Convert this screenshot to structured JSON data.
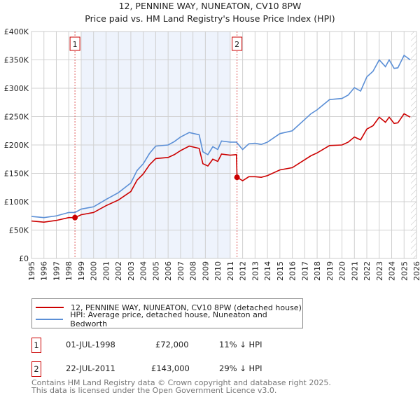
{
  "chart_data": {
    "type": "line",
    "title": "12, PENNINE WAY, NUNEATON, CV10 8PW",
    "subtitle": "Price paid vs. HM Land Registry's House Price Index (HPI)",
    "xlim": [
      1995,
      2026
    ],
    "ylim": [
      0,
      400000
    ],
    "grid": true,
    "x_ticks": [
      "1995",
      "1996",
      "1997",
      "1998",
      "1999",
      "2000",
      "2001",
      "2002",
      "2003",
      "2004",
      "2005",
      "2006",
      "2007",
      "2008",
      "2009",
      "2010",
      "2011",
      "2012",
      "2013",
      "2014",
      "2015",
      "2016",
      "2017",
      "2018",
      "2019",
      "2020",
      "2021",
      "2022",
      "2023",
      "2024",
      "2025",
      "2026"
    ],
    "y_ticks": [
      {
        "v": 0,
        "label": "£0"
      },
      {
        "v": 50000,
        "label": "£50K"
      },
      {
        "v": 100000,
        "label": "£100K"
      },
      {
        "v": 150000,
        "label": "£150K"
      },
      {
        "v": 200000,
        "label": "£200K"
      },
      {
        "v": 250000,
        "label": "£250K"
      },
      {
        "v": 300000,
        "label": "£300K"
      },
      {
        "v": 350000,
        "label": "£350K"
      },
      {
        "v": 400000,
        "label": "£400K"
      }
    ],
    "shaded_period": [
      1999,
      2011
    ],
    "forecast_hatch_from": 2025.55,
    "series": [
      {
        "name": "12, PENNINE WAY, NUNEATON, CV10 8PW (detached house)",
        "color": "#cc0000",
        "points": [
          [
            1995,
            66000
          ],
          [
            1996,
            64000
          ],
          [
            1997,
            67000
          ],
          [
            1998,
            72000
          ],
          [
            1998.5,
            72000
          ],
          [
            1999,
            77000
          ],
          [
            2000,
            81000
          ],
          [
            2001,
            93000
          ],
          [
            2002,
            103000
          ],
          [
            2003,
            118000
          ],
          [
            2003.5,
            138000
          ],
          [
            2004,
            149000
          ],
          [
            2004.5,
            165000
          ],
          [
            2005,
            176000
          ],
          [
            2006,
            178000
          ],
          [
            2006.5,
            183000
          ],
          [
            2007,
            190000
          ],
          [
            2007.7,
            198000
          ],
          [
            2008.5,
            194000
          ],
          [
            2008.8,
            167000
          ],
          [
            2009.2,
            163000
          ],
          [
            2009.6,
            175000
          ],
          [
            2010,
            171000
          ],
          [
            2010.3,
            184000
          ],
          [
            2011,
            182000
          ],
          [
            2011.5,
            183000
          ],
          [
            2011.55,
            143000
          ],
          [
            2012,
            137000
          ],
          [
            2012.5,
            144000
          ],
          [
            2013,
            144000
          ],
          [
            2013.5,
            143000
          ],
          [
            2014,
            146000
          ],
          [
            2015,
            156000
          ],
          [
            2016,
            160000
          ],
          [
            2017,
            174000
          ],
          [
            2017.5,
            181000
          ],
          [
            2018,
            186000
          ],
          [
            2019,
            199000
          ],
          [
            2020,
            200000
          ],
          [
            2020.5,
            205000
          ],
          [
            2021,
            214000
          ],
          [
            2021.5,
            209000
          ],
          [
            2022,
            228000
          ],
          [
            2022.5,
            234000
          ],
          [
            2023,
            249000
          ],
          [
            2023.5,
            240000
          ],
          [
            2023.8,
            249000
          ],
          [
            2024.2,
            238000
          ],
          [
            2024.5,
            239000
          ],
          [
            2025,
            255000
          ],
          [
            2025.5,
            249000
          ]
        ]
      },
      {
        "name": "HPI: Average price, detached house, Nuneaton and Bedworth",
        "color": "#5b8fd6",
        "points": [
          [
            1995,
            74000
          ],
          [
            1996,
            72000
          ],
          [
            1997,
            75000
          ],
          [
            1998,
            81000
          ],
          [
            1998.5,
            81000
          ],
          [
            1999,
            87000
          ],
          [
            2000,
            91000
          ],
          [
            2001,
            104000
          ],
          [
            2002,
            116000
          ],
          [
            2003,
            133000
          ],
          [
            2003.5,
            155000
          ],
          [
            2004,
            167000
          ],
          [
            2004.5,
            185000
          ],
          [
            2005,
            198000
          ],
          [
            2006,
            200000
          ],
          [
            2006.5,
            206000
          ],
          [
            2007,
            214000
          ],
          [
            2007.7,
            222000
          ],
          [
            2008.5,
            218000
          ],
          [
            2008.8,
            188000
          ],
          [
            2009.2,
            183000
          ],
          [
            2009.6,
            197000
          ],
          [
            2010,
            192000
          ],
          [
            2010.3,
            207000
          ],
          [
            2011,
            205000
          ],
          [
            2011.5,
            205000
          ],
          [
            2012,
            192000
          ],
          [
            2012.5,
            202000
          ],
          [
            2013,
            203000
          ],
          [
            2013.5,
            201000
          ],
          [
            2014,
            205000
          ],
          [
            2015,
            220000
          ],
          [
            2016,
            225000
          ],
          [
            2017,
            245000
          ],
          [
            2017.5,
            255000
          ],
          [
            2018,
            262000
          ],
          [
            2019,
            280000
          ],
          [
            2020,
            282000
          ],
          [
            2020.5,
            288000
          ],
          [
            2021,
            301000
          ],
          [
            2021.5,
            295000
          ],
          [
            2022,
            320000
          ],
          [
            2022.5,
            330000
          ],
          [
            2023,
            350000
          ],
          [
            2023.5,
            338000
          ],
          [
            2023.8,
            350000
          ],
          [
            2024.2,
            335000
          ],
          [
            2024.5,
            336000
          ],
          [
            2025,
            358000
          ],
          [
            2025.5,
            350000
          ]
        ]
      }
    ],
    "sales": [
      {
        "label": "1",
        "x": 1998.5,
        "value": 72000,
        "date": "01-JUL-1998",
        "price": "£72,000",
        "hpi": "11% ↓ HPI"
      },
      {
        "label": "2",
        "x": 2011.55,
        "value": 143000,
        "date": "22-JUL-2011",
        "price": "£143,000",
        "hpi": "29% ↓ HPI"
      }
    ]
  },
  "footer": {
    "line1": "Contains HM Land Registry data © Crown copyright and database right 2025.",
    "line2": "This data is licensed under the Open Government Licence v3.0."
  }
}
